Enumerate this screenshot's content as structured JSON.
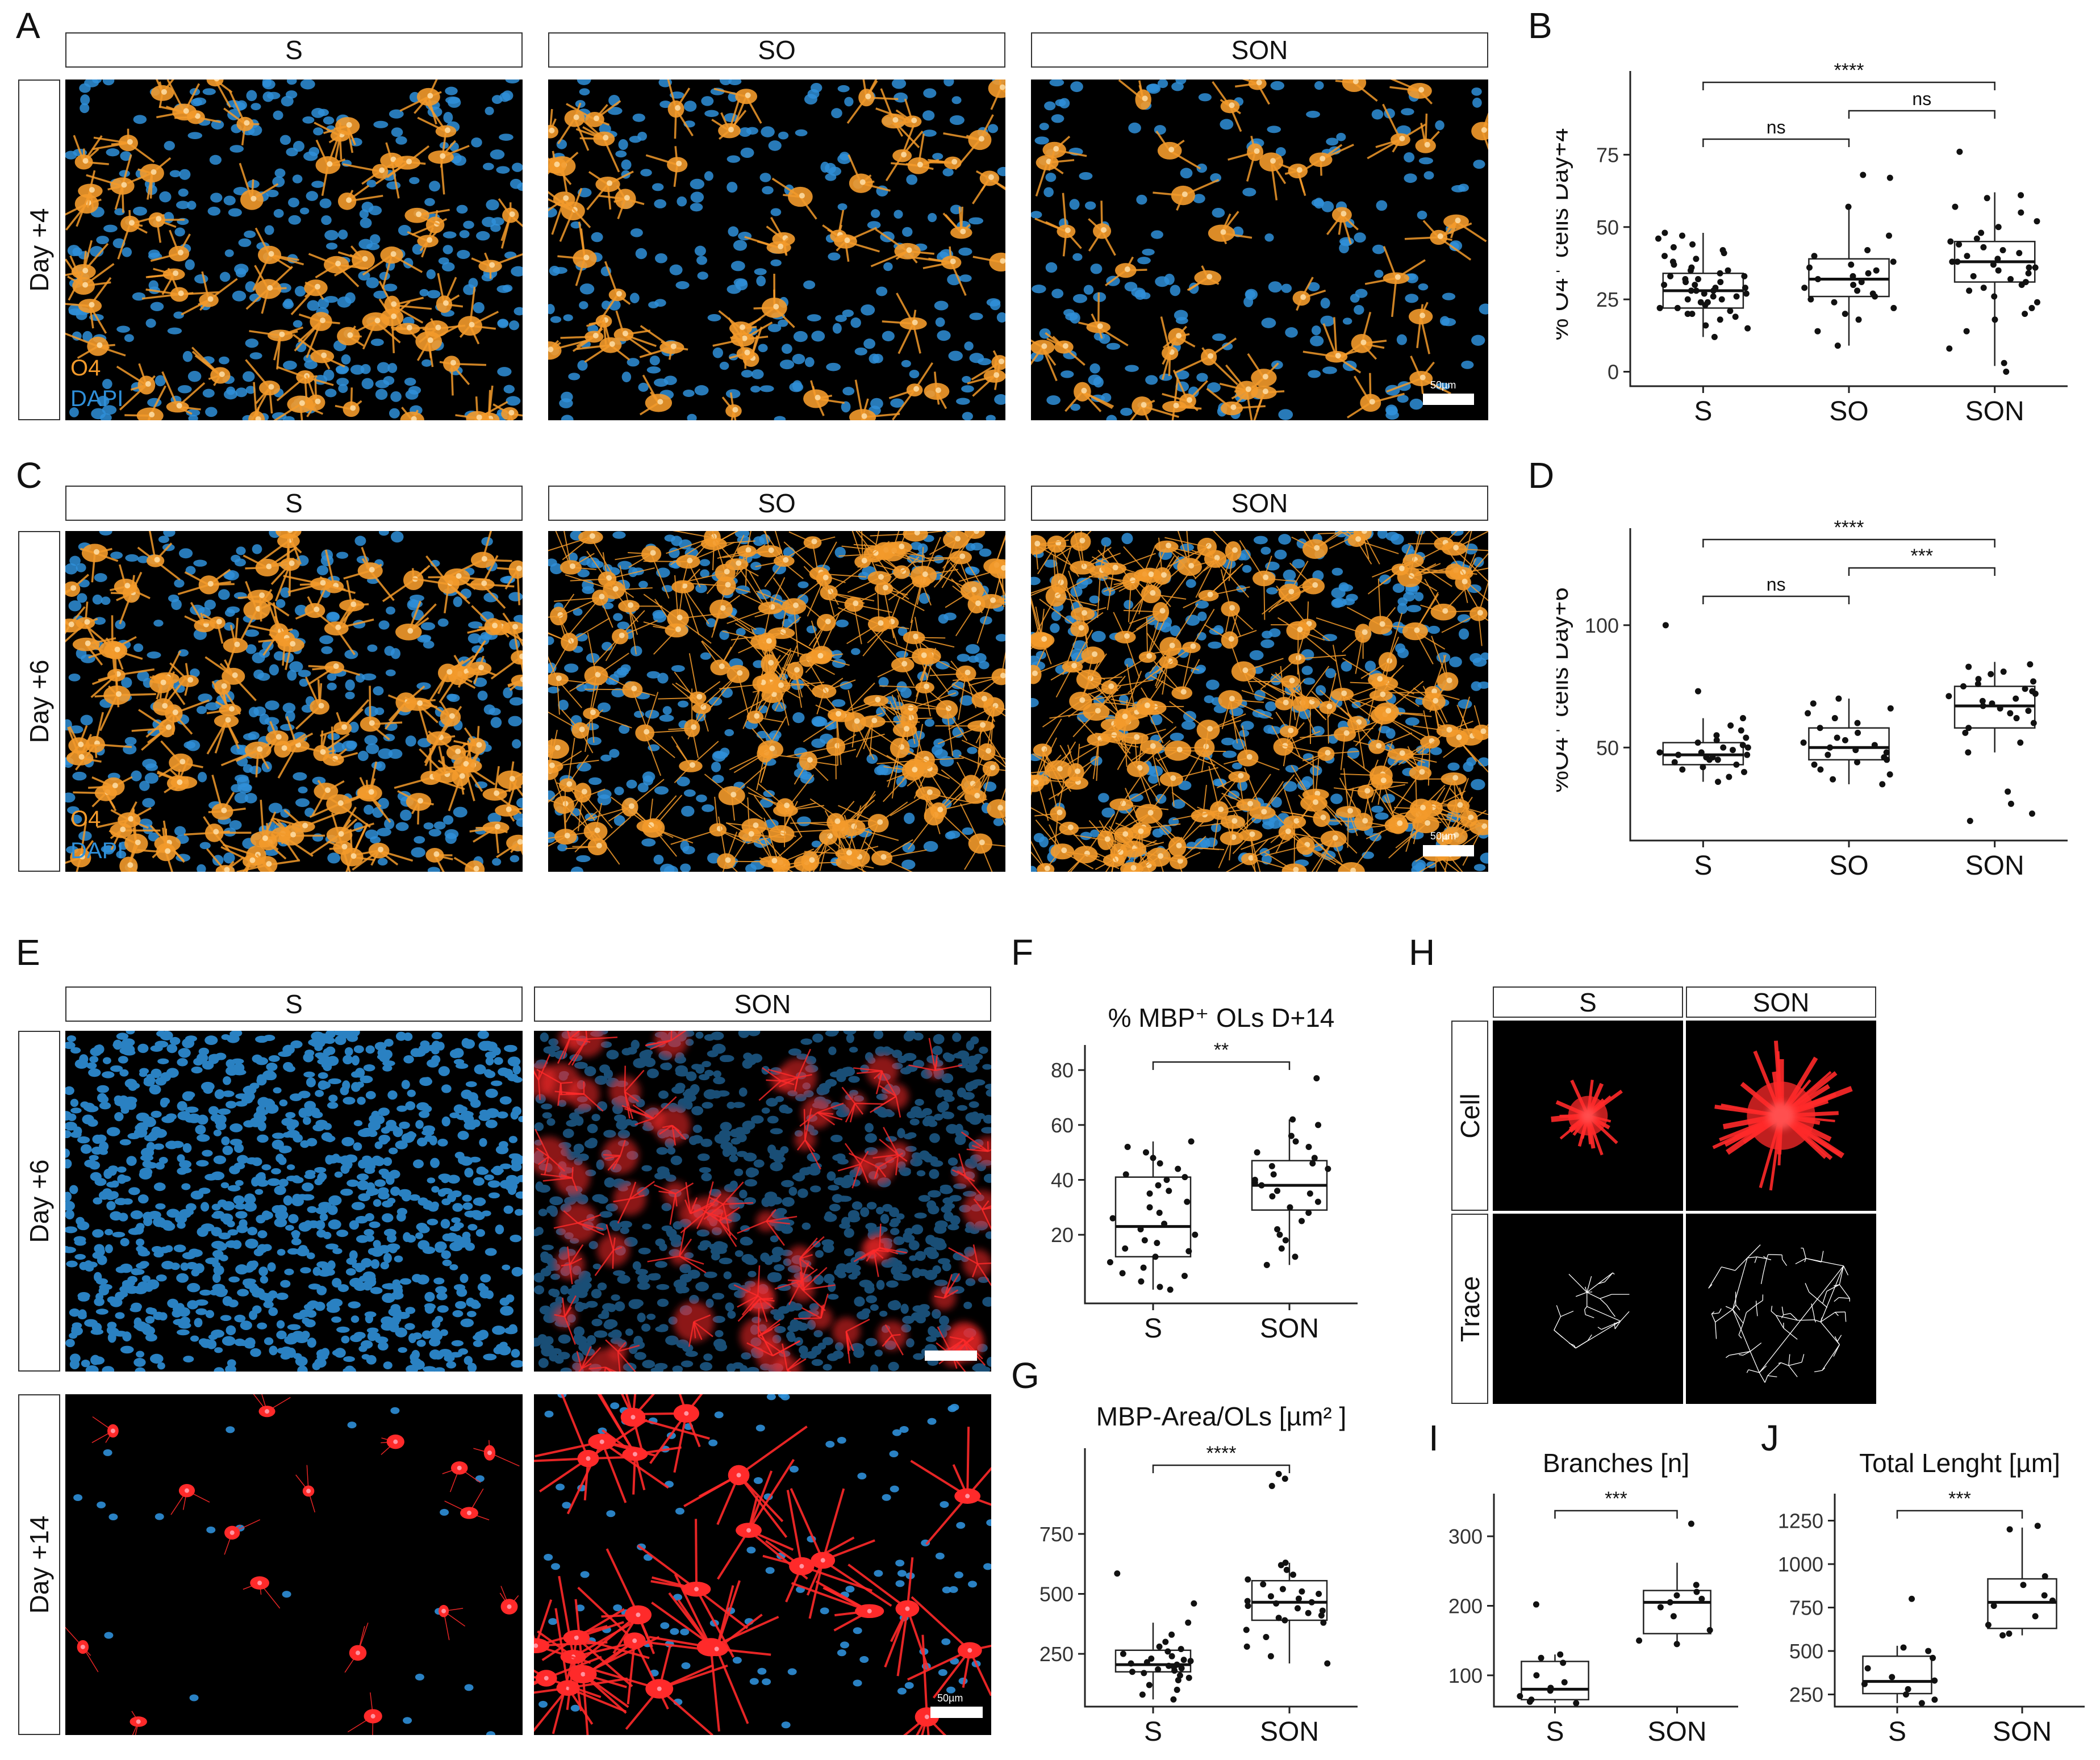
{
  "panel_letters": [
    "A",
    "B",
    "C",
    "D",
    "E",
    "F",
    "G",
    "H",
    "I",
    "J"
  ],
  "panelA": {
    "conditions": [
      "S",
      "SO",
      "SON"
    ],
    "row_label": "Day +4",
    "channels": [
      "O4",
      "DAPI"
    ],
    "scale": "50µm"
  },
  "panelC": {
    "conditions": [
      "S",
      "SO",
      "SON"
    ],
    "row_label": "Day +6",
    "channels": [
      "O4",
      "DAPI"
    ],
    "scale": "50µm"
  },
  "panelE": {
    "conditions": [
      "S",
      "SON"
    ],
    "row_labels": [
      "Day +6",
      "Day +14"
    ],
    "scale": "50µm"
  },
  "panelH": {
    "conditions": [
      "S",
      "SON"
    ],
    "row_labels": [
      "Cell",
      "Trace"
    ]
  },
  "colors": {
    "o4": "#f39a2b",
    "dapi": "#2f8fd8",
    "mbp": "#ff2a2a",
    "trace": "#ffffff",
    "bg": "#000000"
  },
  "chart_data": [
    {
      "id": "B",
      "type": "box",
      "title": "",
      "ylabel": "% O4⁺ cells Day+4",
      "categories": [
        "S",
        "SO",
        "SON"
      ],
      "ylim": [
        -5,
        100
      ],
      "yticks": [
        0,
        25,
        50,
        75
      ],
      "grid": false,
      "boxes": [
        {
          "q1": 22,
          "med": 28,
          "q3": 34,
          "lo": 12,
          "hi": 48
        },
        {
          "q1": 26,
          "med": 32,
          "q3": 39,
          "lo": 9,
          "hi": 58
        },
        {
          "q1": 31,
          "med": 38,
          "q3": 45,
          "lo": 2,
          "hi": 62
        }
      ],
      "points": [
        [
          12,
          15,
          16,
          18,
          19,
          20,
          20,
          21,
          22,
          22,
          23,
          24,
          24,
          25,
          25,
          26,
          26,
          27,
          27,
          28,
          28,
          28,
          29,
          29,
          30,
          30,
          31,
          31,
          32,
          32,
          33,
          33,
          34,
          35,
          35,
          36,
          37,
          38,
          39,
          40,
          41,
          42,
          43,
          44,
          46,
          47,
          48
        ],
        [
          9,
          14,
          18,
          20,
          22,
          24,
          25,
          26,
          27,
          28,
          29,
          30,
          31,
          32,
          33,
          34,
          35,
          36,
          37,
          38,
          40,
          42,
          47,
          57,
          67,
          68
        ],
        [
          0,
          3,
          8,
          14,
          18,
          20,
          22,
          24,
          26,
          28,
          29,
          30,
          31,
          32,
          33,
          34,
          35,
          36,
          36,
          37,
          38,
          38,
          39,
          40,
          41,
          42,
          43,
          44,
          45,
          46,
          48,
          50,
          52,
          55,
          57,
          60,
          61,
          76
        ]
      ],
      "comparisons": [
        {
          "pair": [
            "S",
            "SON"
          ],
          "label": "****"
        },
        {
          "pair": [
            "S",
            "SO"
          ],
          "label": "ns"
        },
        {
          "pair": [
            "SO",
            "SON"
          ],
          "label": "ns"
        }
      ]
    },
    {
      "id": "D",
      "type": "box",
      "title": "",
      "ylabel": "%O4⁺ cells Day+6",
      "categories": [
        "S",
        "SO",
        "SON"
      ],
      "ylim": [
        12,
        135
      ],
      "yticks": [
        50,
        100
      ],
      "grid": false,
      "boxes": [
        {
          "q1": 43,
          "med": 47,
          "q3": 52,
          "lo": 36,
          "hi": 62
        },
        {
          "q1": 45,
          "med": 50,
          "q3": 58,
          "lo": 35,
          "hi": 70
        },
        {
          "q1": 58,
          "med": 67,
          "q3": 75,
          "lo": 48,
          "hi": 85
        }
      ],
      "points": [
        [
          36,
          38,
          40,
          41,
          42,
          43,
          44,
          45,
          45,
          46,
          46,
          47,
          47,
          48,
          48,
          49,
          50,
          50,
          51,
          52,
          53,
          54,
          55,
          57,
          59,
          62,
          73,
          100
        ],
        [
          35,
          37,
          39,
          41,
          43,
          44,
          45,
          46,
          47,
          48,
          49,
          50,
          51,
          52,
          53,
          54,
          56,
          58,
          60,
          62,
          64,
          66,
          68,
          70
        ],
        [
          20,
          23,
          27,
          32,
          48,
          52,
          56,
          58,
          60,
          62,
          64,
          65,
          66,
          67,
          68,
          69,
          70,
          71,
          72,
          73,
          74,
          75,
          76,
          77,
          78,
          80,
          81,
          83,
          84
        ]
      ],
      "comparisons": [
        {
          "pair": [
            "S",
            "SON"
          ],
          "label": "****"
        },
        {
          "pair": [
            "SO",
            "SON"
          ],
          "label": "***"
        },
        {
          "pair": [
            "S",
            "SO"
          ],
          "label": "ns"
        }
      ]
    },
    {
      "id": "F",
      "type": "box",
      "title": "% MBP⁺ OLs D+14",
      "ylabel": "",
      "categories": [
        "S",
        "SON"
      ],
      "ylim": [
        -5,
        85
      ],
      "yticks": [
        20,
        40,
        60,
        80
      ],
      "grid": false,
      "boxes": [
        {
          "q1": 12,
          "med": 23,
          "q3": 41,
          "lo": 0,
          "hi": 54
        },
        {
          "q1": 29,
          "med": 38,
          "q3": 47,
          "lo": 9,
          "hi": 62
        }
      ],
      "points": [
        [
          0,
          1,
          3,
          5,
          6,
          8,
          10,
          12,
          14,
          15,
          17,
          18,
          20,
          22,
          24,
          26,
          28,
          30,
          32,
          35,
          36,
          38,
          40,
          41,
          42,
          44,
          46,
          48,
          50,
          52,
          54
        ],
        [
          9,
          12,
          15,
          18,
          20,
          22,
          25,
          28,
          30,
          32,
          34,
          35,
          36,
          38,
          39,
          40,
          42,
          44,
          45,
          46,
          48,
          50,
          52,
          54,
          56,
          60,
          62,
          77
        ]
      ],
      "comparisons": [
        {
          "pair": [
            "S",
            "SON"
          ],
          "label": "**"
        }
      ]
    },
    {
      "id": "G",
      "type": "box",
      "title": "MBP-Area/OLs [µm² ]",
      "ylabel": "",
      "categories": [
        "S",
        "SON"
      ],
      "ylim": [
        30,
        1060
      ],
      "yticks": [
        250,
        500,
        750
      ],
      "grid": false,
      "boxes": [
        {
          "q1": 175,
          "med": 205,
          "q3": 265,
          "lo": 60,
          "hi": 380
        },
        {
          "q1": 390,
          "med": 465,
          "q3": 555,
          "lo": 210,
          "hi": 630
        }
      ],
      "points": [
        [
          60,
          80,
          100,
          120,
          140,
          150,
          160,
          170,
          175,
          180,
          185,
          190,
          195,
          200,
          205,
          210,
          215,
          220,
          225,
          230,
          240,
          250,
          260,
          270,
          280,
          300,
          330,
          380,
          460,
          585
        ],
        [
          210,
          240,
          280,
          320,
          350,
          380,
          390,
          400,
          410,
          420,
          430,
          440,
          450,
          460,
          465,
          470,
          480,
          490,
          500,
          510,
          520,
          540,
          560,
          580,
          600,
          620,
          630,
          950,
          980,
          1000
        ]
      ],
      "comparisons": [
        {
          "pair": [
            "S",
            "SON"
          ],
          "label": "****"
        }
      ]
    },
    {
      "id": "I",
      "type": "box",
      "title": "Branches [n]",
      "ylabel": "",
      "categories": [
        "S",
        "SON"
      ],
      "ylim": [
        55,
        345
      ],
      "yticks": [
        100,
        200,
        300
      ],
      "grid": false,
      "boxes": [
        {
          "q1": 65,
          "med": 80,
          "q3": 120,
          "lo": 60,
          "hi": 130
        },
        {
          "q1": 160,
          "med": 205,
          "q3": 222,
          "lo": 145,
          "hi": 262
        }
      ],
      "points": [
        [
          60,
          62,
          65,
          70,
          78,
          82,
          90,
          100,
          118,
          125,
          130,
          202
        ],
        [
          145,
          150,
          165,
          185,
          198,
          205,
          210,
          215,
          220,
          230,
          318
        ]
      ],
      "comparisons": [
        {
          "pair": [
            "S",
            "SON"
          ],
          "label": "***"
        }
      ]
    },
    {
      "id": "J",
      "type": "box",
      "title": "Total Lenght [µm]",
      "ylabel": "",
      "categories": [
        "S",
        "SON"
      ],
      "ylim": [
        180,
        1340
      ],
      "yticks": [
        250,
        500,
        750,
        1000,
        1250
      ],
      "grid": false,
      "boxes": [
        {
          "q1": 255,
          "med": 325,
          "q3": 470,
          "lo": 200,
          "hi": 530
        },
        {
          "q1": 630,
          "med": 780,
          "q3": 915,
          "lo": 590,
          "hi": 1210
        }
      ],
      "points": [
        [
          200,
          220,
          250,
          280,
          310,
          330,
          350,
          400,
          460,
          500,
          520,
          800
        ],
        [
          590,
          600,
          650,
          700,
          760,
          790,
          820,
          880,
          930,
          1200,
          1220
        ]
      ],
      "comparisons": [
        {
          "pair": [
            "S",
            "SON"
          ],
          "label": "***"
        }
      ]
    }
  ]
}
